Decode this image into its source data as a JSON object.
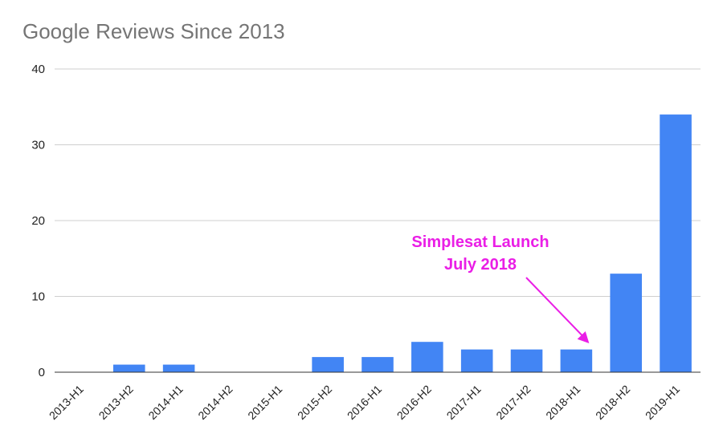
{
  "chart_data": {
    "type": "bar",
    "title": "Google Reviews Since 2013",
    "xlabel": "",
    "ylabel": "",
    "categories": [
      "2013-H1",
      "2013-H2",
      "2014-H1",
      "2014-H2",
      "2015-H1",
      "2015-H2",
      "2016-H1",
      "2016-H2",
      "2017-H1",
      "2017-H2",
      "2018-H1",
      "2018-H2",
      "2019-H1"
    ],
    "values": [
      0,
      1,
      1,
      0,
      0,
      2,
      2,
      4,
      3,
      3,
      3,
      13,
      34
    ],
    "ylim": [
      0,
      40
    ],
    "yticks": [
      0,
      10,
      20,
      30,
      40
    ],
    "grid": true,
    "bar_color": "#4285f4",
    "annotation": {
      "lines": [
        "Simplesat Launch",
        "July 2018"
      ],
      "color": "#ea1ee6",
      "points_to": "2018-H1"
    }
  }
}
